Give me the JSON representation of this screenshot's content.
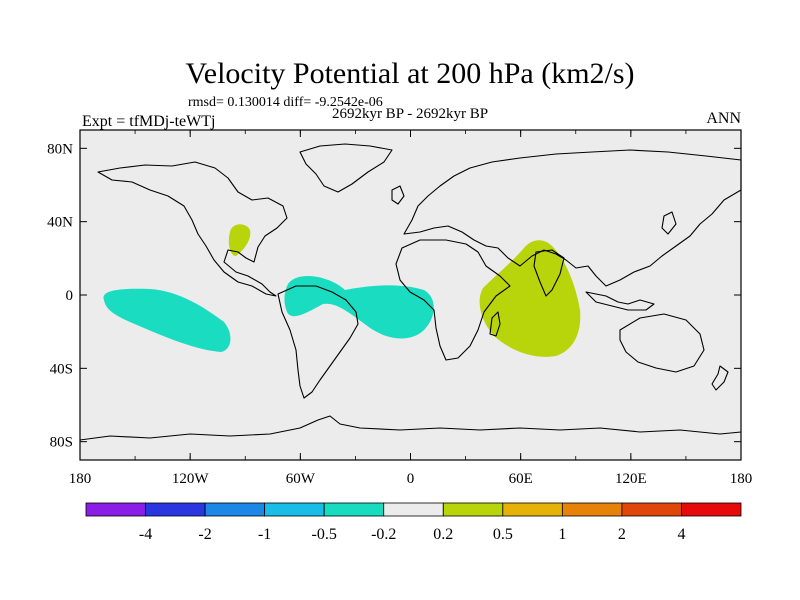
{
  "title": "Velocity Potential at 200 hPa (km2/s)",
  "stats_line": "rmsd= 0.130014 diff= -9.2542e-06",
  "experiment": "Expt = tfMDj-teWTj",
  "period": "2692kyr BP - 2692kyr BP",
  "season": "ANN",
  "lon_ticks": [
    "180",
    "120W",
    "60W",
    "0",
    "60E",
    "120E",
    "180"
  ],
  "lat_ticks": [
    "80N",
    "40N",
    "0",
    "40S",
    "80S"
  ],
  "colorbar": {
    "colors": [
      "#8a1ee6",
      "#2a36e0",
      "#1c87e6",
      "#18bde8",
      "#18dcc0",
      "#ececec",
      "#b8d40a",
      "#e6b208",
      "#e6820a",
      "#e0460a",
      "#e60a0a"
    ],
    "labels": [
      "-4",
      "-2",
      "-1",
      "-0.5",
      "-0.2",
      "0.2",
      "0.5",
      "1",
      "2",
      "4"
    ]
  },
  "colors": {
    "background": "#ececec",
    "negative_fill": "#1adcc0",
    "positive_fill": "#b8d40a",
    "coast": "#000000"
  }
}
